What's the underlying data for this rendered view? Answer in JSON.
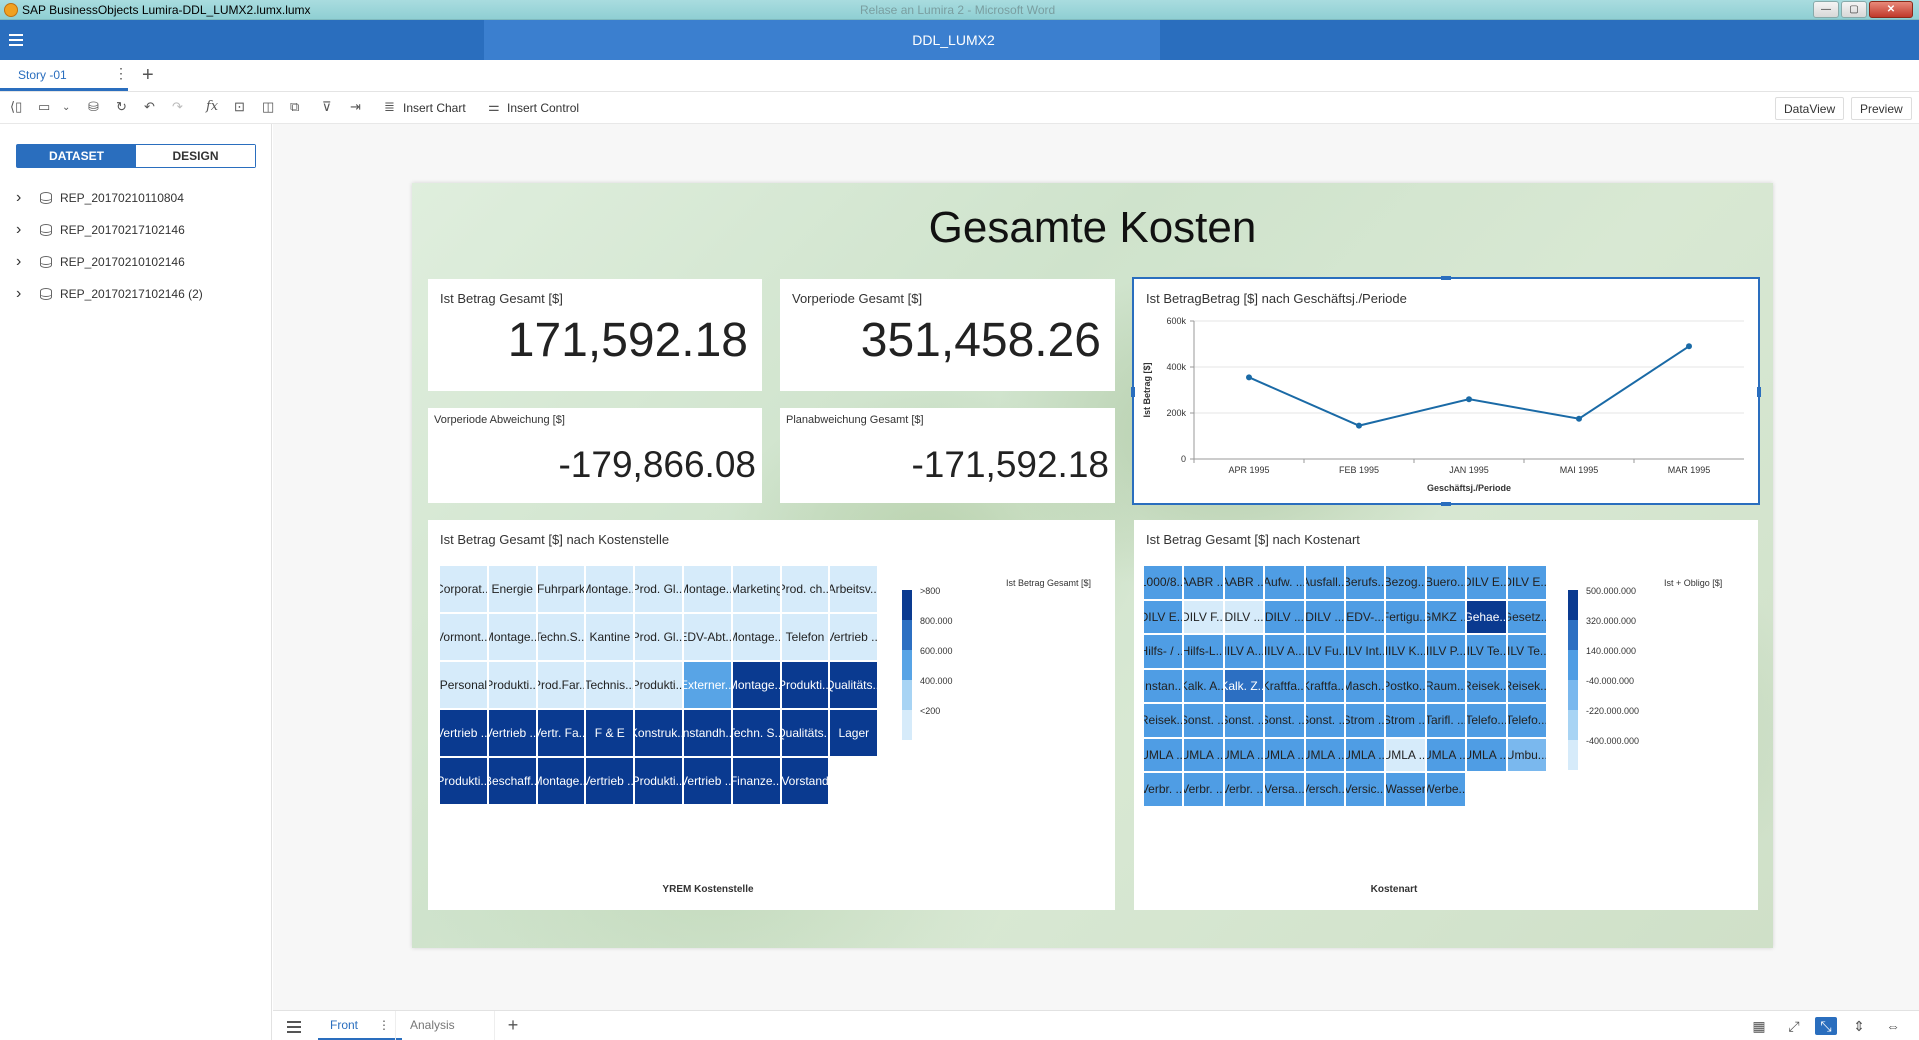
{
  "window": {
    "title": "SAP BusinessObjects Lumira-DDL_LUMX2.lumx.lumx",
    "background_title": "Relase an Lumira 2 - Microsoft Word",
    "minimize": "—",
    "maximize": "▢",
    "close": "✕"
  },
  "app": {
    "document_title": "DDL_LUMX2"
  },
  "story_tabs": {
    "active": "Story -01",
    "menu": "⋮",
    "add": "+"
  },
  "toolbar": {
    "insert_chart": "Insert Chart",
    "insert_control": "Insert Control",
    "dataview": "DataView",
    "preview": "Preview",
    "icons": [
      "collapse-panel-icon",
      "save-icon",
      "dropdown-icon",
      "add-data-icon",
      "refresh-icon",
      "undo-icon",
      "redo-icon",
      "formula-icon",
      "input-control-icon",
      "split-view-icon",
      "duplicate-icon",
      "filter-icon",
      "export-icon"
    ]
  },
  "left_panel": {
    "tabs": [
      "DATASET",
      "DESIGN"
    ],
    "datasets": [
      "REP_20170210110804",
      "REP_20170217102146",
      "REP_20170210102146",
      "REP_20170217102146 (2)"
    ]
  },
  "board": {
    "title": "Gesamte Kosten",
    "kpis": [
      {
        "label": "Ist Betrag Gesamt [$]",
        "value": "171,592.18"
      },
      {
        "label": "Vorperiode Gesamt [$]",
        "value": "351,458.26"
      },
      {
        "label": "Vorperiode Abweichung [$]",
        "value": "-179,866.08"
      },
      {
        "label": "Planabweichung Gesamt [$]",
        "value": "-171,592.18"
      }
    ]
  },
  "chart_data": [
    {
      "type": "line",
      "title": "Ist BetragBetrag [$] nach Geschäftsj./Periode",
      "xlabel": "Geschäftsj./Periode",
      "ylabel": "Ist Betrag [$]",
      "categories": [
        "APR 1995",
        "FEB 1995",
        "JAN 1995",
        "MAI 1995",
        "MAR 1995"
      ],
      "values": [
        355000,
        145000,
        260000,
        175000,
        490000
      ],
      "ylim": [
        0,
        600000
      ],
      "yticks": [
        "0",
        "200k",
        "400k",
        "600k"
      ],
      "color": "#1a6aa6",
      "grid": true
    },
    {
      "type": "heatmap",
      "title": "Ist Betrag Gesamt [$] nach Kostenstelle",
      "xlabel": "YREM Kostenstelle",
      "legend_title": "Ist Betrag Gesamt [$]",
      "legend_labels": [
        ">800",
        "800.000",
        "600.000",
        "400.000",
        "<200"
      ],
      "legend_colors": [
        "#0a3a90",
        "#2c6fc2",
        "#58a4e6",
        "#a8d4f4",
        "#d6ebfa"
      ],
      "cols": 9,
      "cells": [
        {
          "label": "Corporat...",
          "level": 4
        },
        {
          "label": "Energie",
          "level": 4
        },
        {
          "label": "Fuhrpark",
          "level": 4
        },
        {
          "label": "Montage...",
          "level": 4
        },
        {
          "label": "Prod. Gl...",
          "level": 4
        },
        {
          "label": "Montage...",
          "level": 4
        },
        {
          "label": "Marketing",
          "level": 4
        },
        {
          "label": "Prod. ch...",
          "level": 4
        },
        {
          "label": "Arbeitsv...",
          "level": 4
        },
        {
          "label": "Vormont...",
          "level": 4
        },
        {
          "label": "Montage...",
          "level": 4
        },
        {
          "label": "Techn.S...",
          "level": 4
        },
        {
          "label": "Kantine",
          "level": 4
        },
        {
          "label": "Prod. Gl...",
          "level": 4
        },
        {
          "label": "EDV-Abt...",
          "level": 4
        },
        {
          "label": "Montage...",
          "level": 4
        },
        {
          "label": "Telefon",
          "level": 4
        },
        {
          "label": "Vertrieb ...",
          "level": 4
        },
        {
          "label": "Personal",
          "level": 4
        },
        {
          "label": "Produkti...",
          "level": 4
        },
        {
          "label": "Prod.Far...",
          "level": 4
        },
        {
          "label": "Technis...",
          "level": 4
        },
        {
          "label": "Produkti...",
          "level": 4
        },
        {
          "label": "Externer...",
          "level": 2
        },
        {
          "label": "Montage...",
          "level": 0
        },
        {
          "label": "Produkti...",
          "level": 0
        },
        {
          "label": "Qualitäts...",
          "level": 0
        },
        {
          "label": "Vertrieb ...",
          "level": 0
        },
        {
          "label": "Vertrieb ...",
          "level": 0
        },
        {
          "label": "Vertr. Fa...",
          "level": 0
        },
        {
          "label": "F & E",
          "level": 0
        },
        {
          "label": "Konstruk...",
          "level": 0
        },
        {
          "label": "Instandh...",
          "level": 0
        },
        {
          "label": "Techn. S...",
          "level": 0
        },
        {
          "label": "Qualitäts...",
          "level": 0
        },
        {
          "label": "Lager",
          "level": 0
        },
        {
          "label": "Produkti...",
          "level": 0
        },
        {
          "label": "Beschaff...",
          "level": 0
        },
        {
          "label": "Montage...",
          "level": 0
        },
        {
          "label": "Vertrieb ...",
          "level": 0
        },
        {
          "label": "Produkti...",
          "level": 0
        },
        {
          "label": "Vertrieb ...",
          "level": 0
        },
        {
          "label": "Finanze...",
          "level": 0
        },
        {
          "label": "Vorstand",
          "level": 0
        }
      ]
    },
    {
      "type": "heatmap",
      "title": "Ist Betrag Gesamt [$] nach Kostenart",
      "xlabel": "Kostenart",
      "legend_title": "Ist + Obligo [$]",
      "legend_labels": [
        "500.000.000",
        "320.000.000",
        "140.000.000",
        "-40.000.000",
        "-220.000.000",
        "-400.000.000"
      ],
      "legend_colors": [
        "#0a3a90",
        "#2c6fc2",
        "#4f9de4",
        "#7ab8ee",
        "#a8d4f4",
        "#d6ebfa"
      ],
      "cols": 10,
      "cells": [
        {
          "label": "1000/8...",
          "level": 2
        },
        {
          "label": "AABR ...",
          "level": 2
        },
        {
          "label": "AABR ...",
          "level": 2
        },
        {
          "label": "Aufw. ...",
          "level": 2
        },
        {
          "label": "Ausfall...",
          "level": 2
        },
        {
          "label": "Berufs...",
          "level": 2
        },
        {
          "label": "Bezog...",
          "level": 2
        },
        {
          "label": "Buero...",
          "level": 2
        },
        {
          "label": "DILV E...",
          "level": 2
        },
        {
          "label": "DILV E...",
          "level": 2
        },
        {
          "label": "DILV E...",
          "level": 2
        },
        {
          "label": "DILV F...",
          "level": 5
        },
        {
          "label": "DILV ...",
          "level": 5
        },
        {
          "label": "DILV ...",
          "level": 2
        },
        {
          "label": "DILV ...",
          "level": 2
        },
        {
          "label": "EDV-...",
          "level": 2
        },
        {
          "label": "Fertigu...",
          "level": 2
        },
        {
          "label": "GMKZ ...",
          "level": 2
        },
        {
          "label": "Gehae...",
          "level": 0
        },
        {
          "label": "Gesetz...",
          "level": 2
        },
        {
          "label": "Hilfs- / ...",
          "level": 2
        },
        {
          "label": "Hilfs-L...",
          "level": 2
        },
        {
          "label": "IILV A...",
          "level": 2
        },
        {
          "label": "IILV A...",
          "level": 2
        },
        {
          "label": "IILV Fu...",
          "level": 2
        },
        {
          "label": "IILV Int...",
          "level": 2
        },
        {
          "label": "IILV K...",
          "level": 2
        },
        {
          "label": "IILV P...",
          "level": 2
        },
        {
          "label": "IILV Te...",
          "level": 2
        },
        {
          "label": "IILV Te...",
          "level": 2
        },
        {
          "label": "Instan...",
          "level": 2
        },
        {
          "label": "Kalk. A...",
          "level": 2
        },
        {
          "label": "Kalk. Z...",
          "level": 1
        },
        {
          "label": "Kraftfa...",
          "level": 2
        },
        {
          "label": "Kraftfa...",
          "level": 2
        },
        {
          "label": "Masch...",
          "level": 2
        },
        {
          "label": "Postko...",
          "level": 2
        },
        {
          "label": "Raum...",
          "level": 2
        },
        {
          "label": "Reisek...",
          "level": 2
        },
        {
          "label": "Reisek...",
          "level": 2
        },
        {
          "label": "Reisek...",
          "level": 2
        },
        {
          "label": "Sonst. ...",
          "level": 2
        },
        {
          "label": "Sonst. ...",
          "level": 2
        },
        {
          "label": "Sonst. ...",
          "level": 2
        },
        {
          "label": "Sonst. ...",
          "level": 2
        },
        {
          "label": "Strom ...",
          "level": 2
        },
        {
          "label": "Strom ...",
          "level": 2
        },
        {
          "label": "Tarifl. ...",
          "level": 2
        },
        {
          "label": "Telefo...",
          "level": 2
        },
        {
          "label": "Telefo...",
          "level": 2
        },
        {
          "label": "UMLA ...",
          "level": 2
        },
        {
          "label": "UMLA ...",
          "level": 2
        },
        {
          "label": "UMLA ...",
          "level": 2
        },
        {
          "label": "UMLA ...",
          "level": 2
        },
        {
          "label": "UMLA ...",
          "level": 2
        },
        {
          "label": "UMLA ...",
          "level": 2
        },
        {
          "label": "UMLA ...",
          "level": 5
        },
        {
          "label": "UMLA ...",
          "level": 2
        },
        {
          "label": "UMLA ...",
          "level": 2
        },
        {
          "label": "Umbu...",
          "level": 3
        },
        {
          "label": "Verbr. ...",
          "level": 2
        },
        {
          "label": "Verbr. ...",
          "level": 2
        },
        {
          "label": "Verbr. ...",
          "level": 2
        },
        {
          "label": "Versa...",
          "level": 2
        },
        {
          "label": "Versch...",
          "level": 2
        },
        {
          "label": "Versic...",
          "level": 2
        },
        {
          "label": "Wasser",
          "level": 2
        },
        {
          "label": "Werbe...",
          "level": 2
        }
      ]
    }
  ],
  "bottom": {
    "pages": [
      "Front",
      "Analysis"
    ],
    "page_menu": "⋮",
    "add_page": "+",
    "view_icons": [
      "grid-icon",
      "fit-page-icon",
      "fit-width-active-icon",
      "fit-height-icon",
      "actual-size-icon"
    ]
  }
}
